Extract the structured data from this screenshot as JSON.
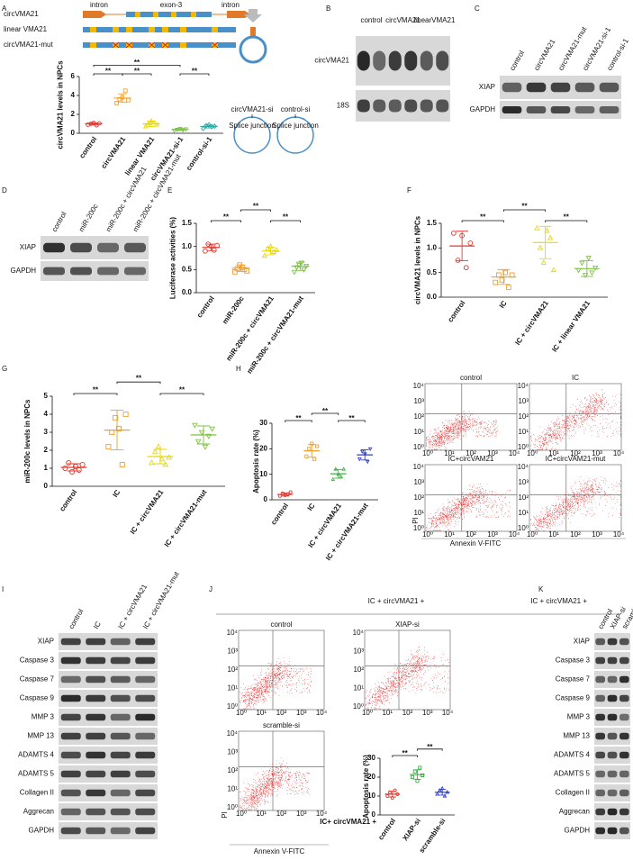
{
  "panel_letters": [
    "A",
    "B",
    "C",
    "D",
    "E",
    "F",
    "G",
    "H",
    "I",
    "J",
    "K"
  ],
  "diagram": {
    "constructs": [
      "circVMA21",
      "linear VMA21",
      "circVMA21-mut"
    ],
    "gene_labels": [
      "intron",
      "exon-3",
      "intron"
    ],
    "knockdown": [
      {
        "name": "circVMA21-si",
        "site": "Splice junction"
      },
      {
        "name": "control-si",
        "site": "Splice junction"
      }
    ]
  },
  "chart_data": [
    {
      "type": "dot",
      "y_label": "circVMA21 levels in NPCs",
      "categories": [
        "control",
        "circVMA21",
        "linear VMA21",
        "circVMA21-si-1",
        "control-si-1"
      ],
      "colors": [
        "#e03c31",
        "#f0a030",
        "#e8d800",
        "#7dc242",
        "#28a8a0"
      ],
      "points": [
        [
          0.9,
          1.0,
          1.1,
          0.85,
          1.05
        ],
        [
          3.2,
          3.6,
          3.8,
          4.5,
          3.5
        ],
        [
          0.7,
          1.0,
          1.3,
          1.1,
          0.9
        ],
        [
          0.3,
          0.4,
          0.5,
          0.35,
          0.45
        ],
        [
          0.5,
          0.8,
          0.9,
          0.7,
          0.75
        ]
      ],
      "means": [
        1.0,
        3.72,
        1.0,
        0.4,
        0.72
      ],
      "sd": [
        0.12,
        0.45,
        0.28,
        0.1,
        0.15
      ],
      "ylim": [
        0,
        6
      ],
      "yticks": [
        0,
        2,
        4,
        6
      ],
      "significance": [
        "**",
        "**",
        "**",
        "**"
      ]
    },
    {
      "type": "dot",
      "y_label": "Luciferase activities (%)",
      "categories": [
        "control",
        "miR-200c",
        "miR-200c + circVMA21",
        "miR-200c + circVMA21-mut"
      ],
      "colors": [
        "#e03c31",
        "#f0a030",
        "#e8d800",
        "#7dc242"
      ],
      "points": [
        [
          0.9,
          1.05,
          1.0,
          0.92,
          1.02
        ],
        [
          0.45,
          0.52,
          0.6,
          0.55,
          0.5,
          0.47
        ],
        [
          0.8,
          0.95,
          1.0,
          0.88,
          0.92
        ],
        [
          0.45,
          0.55,
          0.6,
          0.65,
          0.5,
          0.58
        ]
      ],
      "means": [
        0.98,
        0.53,
        0.9,
        0.57
      ],
      "sd": [
        0.07,
        0.07,
        0.08,
        0.09
      ],
      "ylim": [
        0,
        1.5
      ],
      "yticks": [
        {
          "value": 0,
          "label": "0.0"
        },
        {
          "value": 0.5,
          "label": "0.5"
        },
        {
          "value": 1,
          "label": "1.0"
        },
        {
          "value": 1.5,
          "label": "1.5"
        }
      ],
      "significance": [
        "**",
        "**",
        "**"
      ]
    },
    {
      "type": "dot",
      "y_label": "circVMA21 levels in NPCs",
      "categories": [
        "control",
        "IC",
        "IC + circVMA21",
        "IC + linear VMA21"
      ],
      "colors": [
        "#e03c31",
        "#f0a030",
        "#e8d800",
        "#7dc242"
      ],
      "points": [
        [
          1.3,
          0.75,
          1.25,
          0.6,
          1.1
        ],
        [
          0.3,
          0.45,
          0.35,
          0.5,
          0.2,
          0.45
        ],
        [
          1.4,
          1.0,
          0.7,
          1.35,
          1.2,
          0.55
        ],
        [
          0.55,
          0.7,
          0.45,
          0.8,
          0.5,
          0.6
        ]
      ],
      "means": [
        1.04,
        0.41,
        1.11,
        0.58
      ],
      "sd": [
        0.3,
        0.15,
        0.33,
        0.16
      ],
      "ylim": [
        0,
        1.5
      ],
      "yticks": [
        {
          "value": 0,
          "label": "0.0"
        },
        {
          "value": 0.5,
          "label": "0.5"
        },
        {
          "value": 1,
          "label": "1.0"
        },
        {
          "value": 1.5,
          "label": "1.5"
        }
      ],
      "significance": [
        "**",
        "**",
        "**"
      ]
    },
    {
      "type": "dot",
      "y_label": "miR-200c levels in NPCs",
      "categories": [
        "control",
        "IC",
        "IC + circVMA21",
        "IC + circVMA21-mut"
      ],
      "colors": [
        "#e03c31",
        "#f0a030",
        "#e8d800",
        "#7dc242"
      ],
      "points": [
        [
          1.0,
          1.3,
          0.8,
          1.1,
          0.9,
          1.2
        ],
        [
          2.2,
          3.0,
          3.8,
          3.2,
          1.2,
          4.0
        ],
        [
          1.3,
          1.9,
          2.2,
          1.5,
          1.2,
          1.6
        ],
        [
          3.4,
          2.5,
          3.0,
          2.2,
          2.8,
          3.2
        ]
      ],
      "means": [
        1.05,
        3.12,
        1.65,
        2.85
      ],
      "sd": [
        0.2,
        1.1,
        0.4,
        0.5
      ],
      "ylim": [
        0,
        5
      ],
      "yticks": [
        0,
        1,
        2,
        3,
        4,
        5
      ],
      "significance": [
        "**",
        "**",
        "**"
      ]
    },
    {
      "type": "dot",
      "y_label": "Apoptosis rate (%)",
      "categories": [
        "control",
        "IC",
        "IC + circVMA21",
        "IC + circVMA21-mut"
      ],
      "colors": [
        "#e03c31",
        "#f0a030",
        "#3cb043",
        "#2f3fc4"
      ],
      "points": [
        [
          1.5,
          2.5,
          1.8,
          2.2,
          3
        ],
        [
          17,
          20,
          22,
          16,
          21
        ],
        [
          8,
          12,
          10,
          9,
          12
        ],
        [
          16,
          19,
          18,
          15,
          20
        ]
      ],
      "means": [
        2.1,
        19.2,
        10.2,
        17.6
      ],
      "sd": [
        0.6,
        2.5,
        1.7,
        2.0
      ],
      "ylim": [
        0,
        30
      ],
      "yticks": [
        0,
        10,
        20,
        30
      ],
      "significance": [
        "**",
        "**",
        "**"
      ]
    },
    {
      "type": "dot",
      "x_prefix": "IC+ circVMA21 +",
      "y_label": "Apoptosis rate (%)",
      "categories": [
        "control",
        "XIAP-si",
        "scramble-si"
      ],
      "colors": [
        "#e03c31",
        "#3cb043",
        "#2f3fc4"
      ],
      "points": [
        [
          10,
          12,
          9,
          13,
          11
        ],
        [
          20,
          23,
          18,
          25,
          21
        ],
        [
          11,
          13,
          14,
          10,
          12
        ]
      ],
      "means": [
        11,
        21.4,
        12
      ],
      "sd": [
        1.5,
        2.5,
        1.5
      ],
      "ylim": [
        0,
        30
      ],
      "yticks": [
        0,
        10,
        20,
        30
      ],
      "significance": [
        "**",
        "**"
      ]
    }
  ],
  "blots": [
    {
      "lanes": [
        "control",
        "circVMA21",
        "linearVMA21"
      ],
      "rows": [
        "circVMA21",
        "18S"
      ]
    },
    {
      "lanes": [
        "control",
        "circVMA21",
        "circVMA21-mut",
        "circVMA21-si-1",
        "control-si-1"
      ],
      "rows": [
        "XIAP",
        "GAPDH"
      ]
    },
    {
      "lanes": [
        "control",
        "miR-200c",
        "miR-200c + circVMA21",
        "miR-200c + circVMA21-mut"
      ],
      "rows": [
        "XIAP",
        "GAPDH"
      ]
    },
    {
      "lanes": [
        "control",
        "IC",
        "IC + circVMA21",
        "IC + circVMA21-mut"
      ],
      "rows": [
        "XIAP",
        "Caspase 3",
        "Caspase 7",
        "Caspase 9",
        "MMP 3",
        "MMP 13",
        "ADAMTS 4",
        "ADAMTS 5",
        "Collagen II",
        "Aggrecan",
        "GAPDH"
      ]
    },
    {
      "header": "IC + circVMA21 +",
      "lanes": [
        "control",
        "XIAP-si",
        "scramble-si"
      ],
      "rows": [
        "XIAP",
        "Caspase 3",
        "Caspase 7",
        "Caspase 9",
        "MMP 3",
        "MMP 13",
        "ADAMTS 4",
        "ADAMTS 5",
        "Collagen II",
        "Aggrecan",
        "GAPDH"
      ]
    }
  ],
  "flow_h": {
    "plots": [
      "control",
      "IC",
      "IC+circVAM21",
      "IC+circVAM21-mut"
    ],
    "y_label": "PI",
    "x_label": "Annexin V-FITC"
  },
  "flow_j": {
    "title": "IC + circVMA21 +",
    "plots": [
      "control",
      "XIAP-si",
      "scramble-si"
    ],
    "y_label": "PI",
    "x_label": "Annexin V-FITC"
  },
  "log_ticks": [
    "10⁰",
    "10¹",
    "10²",
    "10³",
    "10⁴"
  ]
}
